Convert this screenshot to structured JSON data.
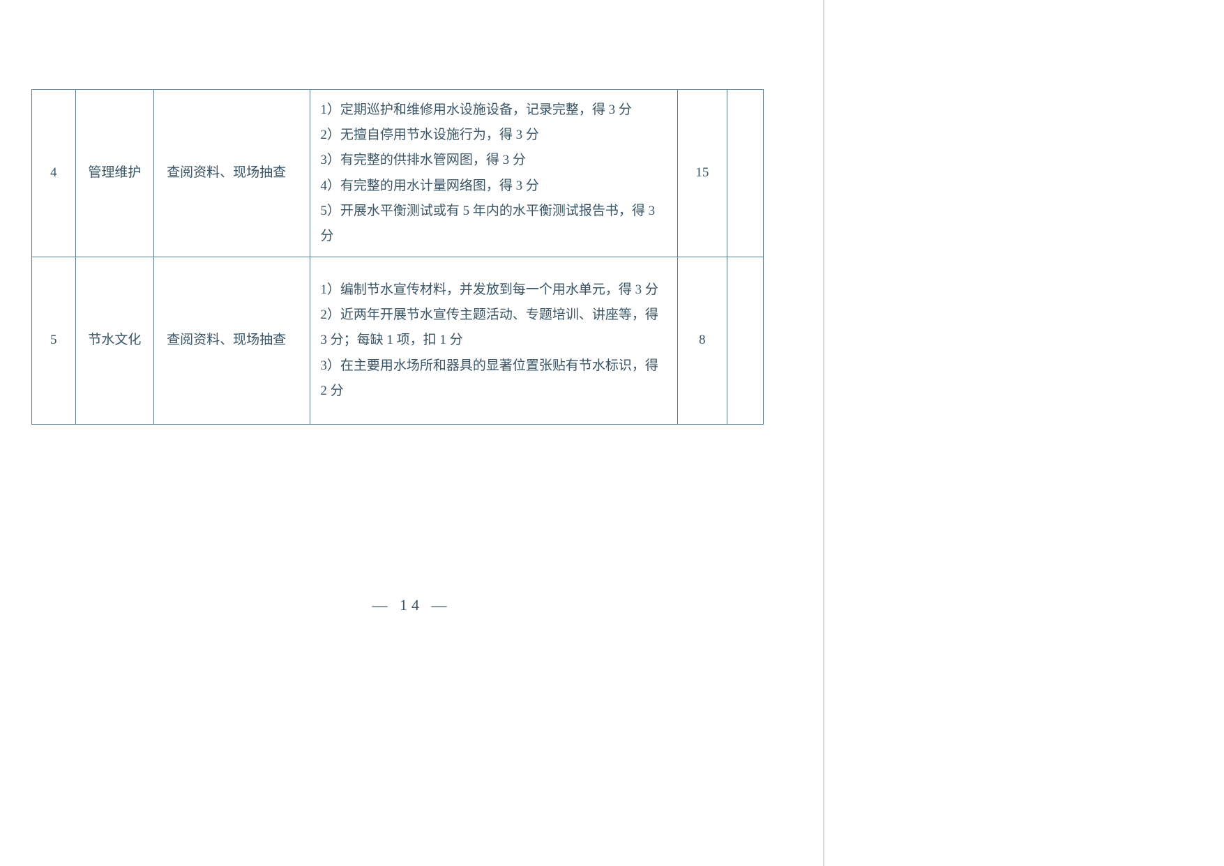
{
  "page_number": "— 14 —",
  "table": {
    "border_color": "#5a7a8a",
    "text_color": "#3a5565",
    "font_size": 19,
    "rows": [
      {
        "num": "4",
        "category": "管理维护",
        "method": "查阅资料、现场抽查",
        "desc": "1）定期巡护和维修用水设施设备，记录完整，得 3 分\n2）无擅自停用节水设施行为，得 3 分\n3）有完整的供排水管网图，得 3 分\n4）有完整的用水计量网络图，得 3 分\n5）开展水平衡测试或有 5 年内的水平衡测试报告书，得 3 分",
        "score": "15",
        "empty": ""
      },
      {
        "num": "5",
        "category": "节水文化",
        "method": "查阅资料、现场抽查",
        "desc": "1）编制节水宣传材料，并发放到每一个用水单元，得 3 分\n2）近两年开展节水宣传主题活动、专题培训、讲座等，得 3 分；每缺 1 项，扣 1 分\n3）在主要用水场所和器具的显著位置张贴有节水标识，得 2 分",
        "score": "8",
        "empty": ""
      }
    ]
  }
}
